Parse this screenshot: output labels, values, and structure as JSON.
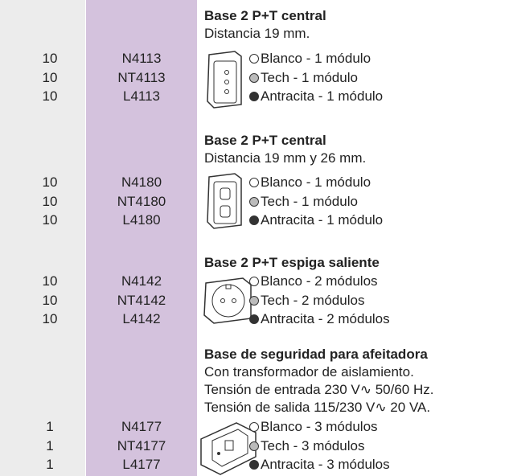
{
  "sections": [
    {
      "title": "Base 2 P+T central",
      "notes": [
        "Distancia 19 mm."
      ],
      "items": [
        {
          "qty": "10",
          "code": "N4113",
          "label": "Blanco - 1 módulo"
        },
        {
          "qty": "10",
          "code": "NT4113",
          "label": "Tech - 1 módulo"
        },
        {
          "qty": "10",
          "code": "L4113",
          "label": "Antracita - 1 módulo"
        }
      ]
    },
    {
      "title": "Base 2 P+T central",
      "notes": [
        "Distancia 19 mm y 26 mm."
      ],
      "items": [
        {
          "qty": "10",
          "code": "N4180",
          "label": "Blanco - 1 módulo"
        },
        {
          "qty": "10",
          "code": "NT4180",
          "label": "Tech - 1 módulo"
        },
        {
          "qty": "10",
          "code": "L4180",
          "label": "Antracita - 1 módulo"
        }
      ]
    },
    {
      "title": "Base 2 P+T espiga saliente",
      "notes": [],
      "items": [
        {
          "qty": "10",
          "code": "N4142",
          "label": "Blanco - 2 módulos"
        },
        {
          "qty": "10",
          "code": "NT4142",
          "label": "Tech - 2 módulos"
        },
        {
          "qty": "10",
          "code": "L4142",
          "label": "Antracita - 2 módulos"
        }
      ]
    },
    {
      "title": "Base de seguridad para afeitadora",
      "notes": [
        "Con transformador de aislamiento.",
        "Tensión de entrada 230 V∿ 50/60 Hz.",
        "Tensión de salida 115/230 V∿ 20 VA."
      ],
      "items": [
        {
          "qty": "1",
          "code": "N4177",
          "label": "Blanco - 3 módulos"
        },
        {
          "qty": "1",
          "code": "NT4177",
          "label": "Tech - 3 módulos"
        },
        {
          "qty": "1",
          "code": "L4177",
          "label": "Antracita - 3 módulos"
        }
      ]
    }
  ]
}
